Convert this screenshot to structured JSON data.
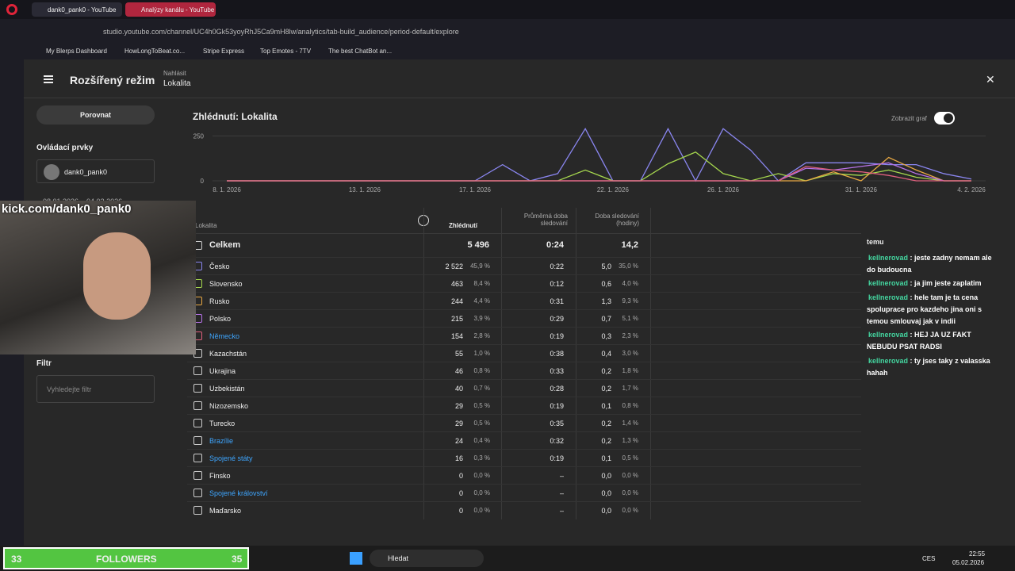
{
  "browser": {
    "tabs": [
      "dank0_pank0 - YouTube",
      "Analýzy kanálu - YouTube"
    ],
    "url": "studio.youtube.com/channel/UC4h0Gk53yoyRhJ5Ca9mH8lw/analytics/tab-build_audience/period-default/explore",
    "bookmarks": [
      "My Blerps Dashboard",
      "HowLongToBeat.co...",
      "Stripe Express",
      "Top Emotes - 7TV",
      "The best ChatBot an..."
    ]
  },
  "header": {
    "title": "Rozšířený režim",
    "report_label": "Nahlásit",
    "report_value": "Lokalita"
  },
  "sidebar": {
    "compare": "Porovnat",
    "controls": "Ovládací prvky",
    "channel": "dank0_pank0",
    "period": "08.01.2026 – 04.02.2026",
    "filter": "Filtr",
    "filter_placeholder": "Vyhledejte filtr"
  },
  "chart": {
    "type": "line",
    "title": "Zhlédnutí: Lokalita",
    "toggle": "Zobrazit graf",
    "categories": [
      "8. 1. 2026",
      null,
      null,
      null,
      null,
      "13. 1. 2026",
      null,
      null,
      null,
      "17. 1. 2026",
      null,
      null,
      null,
      null,
      "22. 1. 2026",
      null,
      null,
      null,
      "26. 1. 2026",
      null,
      null,
      null,
      null,
      "31. 1. 2026",
      null,
      null,
      null,
      "4. 2. 2026"
    ],
    "ylim": [
      0,
      300
    ],
    "yticks": [
      0,
      250
    ],
    "series": [
      {
        "name": "Česko",
        "color": "#8a86f0",
        "values": [
          0,
          0,
          0,
          0,
          0,
          0,
          0,
          0,
          0,
          0,
          90,
          0,
          40,
          290,
          0,
          0,
          290,
          0,
          290,
          170,
          0,
          100,
          100,
          100,
          90,
          90,
          40,
          10
        ]
      },
      {
        "name": "Slovensko",
        "color": "#a6d84e",
        "values": [
          0,
          0,
          0,
          0,
          0,
          0,
          0,
          0,
          0,
          0,
          0,
          0,
          0,
          60,
          0,
          0,
          95,
          160,
          40,
          0,
          40,
          0,
          40,
          30,
          60,
          20,
          0,
          0
        ]
      },
      {
        "name": "Rusko",
        "color": "#e8a843",
        "values": [
          0,
          0,
          0,
          0,
          0,
          0,
          0,
          0,
          0,
          0,
          0,
          0,
          0,
          0,
          0,
          0,
          0,
          0,
          0,
          0,
          0,
          0,
          50,
          0,
          130,
          60,
          0,
          0
        ]
      },
      {
        "name": "Polsko",
        "color": "#b772e8",
        "values": [
          0,
          0,
          0,
          0,
          0,
          0,
          0,
          0,
          0,
          0,
          0,
          0,
          0,
          0,
          0,
          0,
          0,
          0,
          0,
          0,
          0,
          70,
          60,
          80,
          100,
          40,
          0,
          0
        ]
      },
      {
        "name": "Německo",
        "color": "#e0607e",
        "values": [
          0,
          0,
          0,
          0,
          0,
          0,
          0,
          0,
          0,
          0,
          0,
          0,
          0,
          0,
          0,
          0,
          0,
          0,
          0,
          0,
          0,
          80,
          60,
          50,
          30,
          0,
          0,
          0
        ]
      }
    ]
  },
  "table": {
    "columns": [
      "Lokalita",
      "Zhlédnutí",
      "Průměrná doba sledování",
      "Doba sledování (hodiny)"
    ],
    "total": {
      "name": "Celkem",
      "views": "5 496",
      "avg": "0:24",
      "hours": "14,2"
    },
    "rows": [
      {
        "name": "Česko",
        "views": "2 522",
        "views_pct": "45,9 %",
        "avg": "0:22",
        "hours": "5,0",
        "hours_pct": "35,0 %"
      },
      {
        "name": "Slovensko",
        "views": "463",
        "views_pct": "8,4 %",
        "avg": "0:12",
        "hours": "0,6",
        "hours_pct": "4,0 %"
      },
      {
        "name": "Rusko",
        "views": "244",
        "views_pct": "4,4 %",
        "avg": "0:31",
        "hours": "1,3",
        "hours_pct": "9,3 %"
      },
      {
        "name": "Polsko",
        "views": "215",
        "views_pct": "3,9 %",
        "avg": "0:29",
        "hours": "0,7",
        "hours_pct": "5,1 %"
      },
      {
        "name": "Německo",
        "views": "154",
        "views_pct": "2,8 %",
        "avg": "0:19",
        "hours": "0,3",
        "hours_pct": "2,3 %",
        "link": true
      },
      {
        "name": "Kazachstán",
        "views": "55",
        "views_pct": "1,0 %",
        "avg": "0:38",
        "hours": "0,4",
        "hours_pct": "3,0 %"
      },
      {
        "name": "Ukrajina",
        "views": "46",
        "views_pct": "0,8 %",
        "avg": "0:33",
        "hours": "0,2",
        "hours_pct": "1,8 %"
      },
      {
        "name": "Uzbekistán",
        "views": "40",
        "views_pct": "0,7 %",
        "avg": "0:28",
        "hours": "0,2",
        "hours_pct": "1,7 %"
      },
      {
        "name": "Nizozemsko",
        "views": "29",
        "views_pct": "0,5 %",
        "avg": "0:19",
        "hours": "0,1",
        "hours_pct": "0,8 %"
      },
      {
        "name": "Turecko",
        "views": "29",
        "views_pct": "0,5 %",
        "avg": "0:35",
        "hours": "0,2",
        "hours_pct": "1,4 %"
      },
      {
        "name": "Brazílie",
        "views": "24",
        "views_pct": "0,4 %",
        "avg": "0:32",
        "hours": "0,2",
        "hours_pct": "1,3 %",
        "link": true
      },
      {
        "name": "Spojené státy",
        "views": "16",
        "views_pct": "0,3 %",
        "avg": "0:19",
        "hours": "0,1",
        "hours_pct": "0,5 %",
        "link": true
      },
      {
        "name": "Finsko",
        "views": "0",
        "views_pct": "0,0 %",
        "avg": "–",
        "hours": "0,0",
        "hours_pct": "0,0 %"
      },
      {
        "name": "Spojené království",
        "views": "0",
        "views_pct": "0,0 %",
        "avg": "–",
        "hours": "0,0",
        "hours_pct": "0,0 %",
        "link": true
      },
      {
        "name": "Maďarsko",
        "views": "0",
        "views_pct": "0,0 %",
        "avg": "–",
        "hours": "0,0",
        "hours_pct": "0,0 %"
      }
    ]
  },
  "chat": {
    "partial": "temu",
    "messages": [
      {
        "user": "kellnerovad",
        "text": "jeste zadny nemam ale do budoucna"
      },
      {
        "user": "kellnerovad",
        "text": "ja jim jeste zaplatim"
      },
      {
        "user": "kellnerovad",
        "text": "hele tam je ta cena spoluprace pro kazdeho jina oni s temou smlouvaj jak v indii"
      },
      {
        "user": "kellnerovad",
        "text": "HEJ JA UZ FAKT NEBUDU PSAT RADSI"
      },
      {
        "user": "kellnerovad",
        "text": "ty jses taky z valasska hahah"
      }
    ]
  },
  "overlay": {
    "kick": "kick.com/dank0_pank0",
    "followers_current": "33",
    "followers_label": "FOLLOWERS",
    "followers_goal": "35"
  },
  "taskbar": {
    "search": "Hledat",
    "language": "CES",
    "time": "22:55",
    "date": "05.02.2026"
  }
}
